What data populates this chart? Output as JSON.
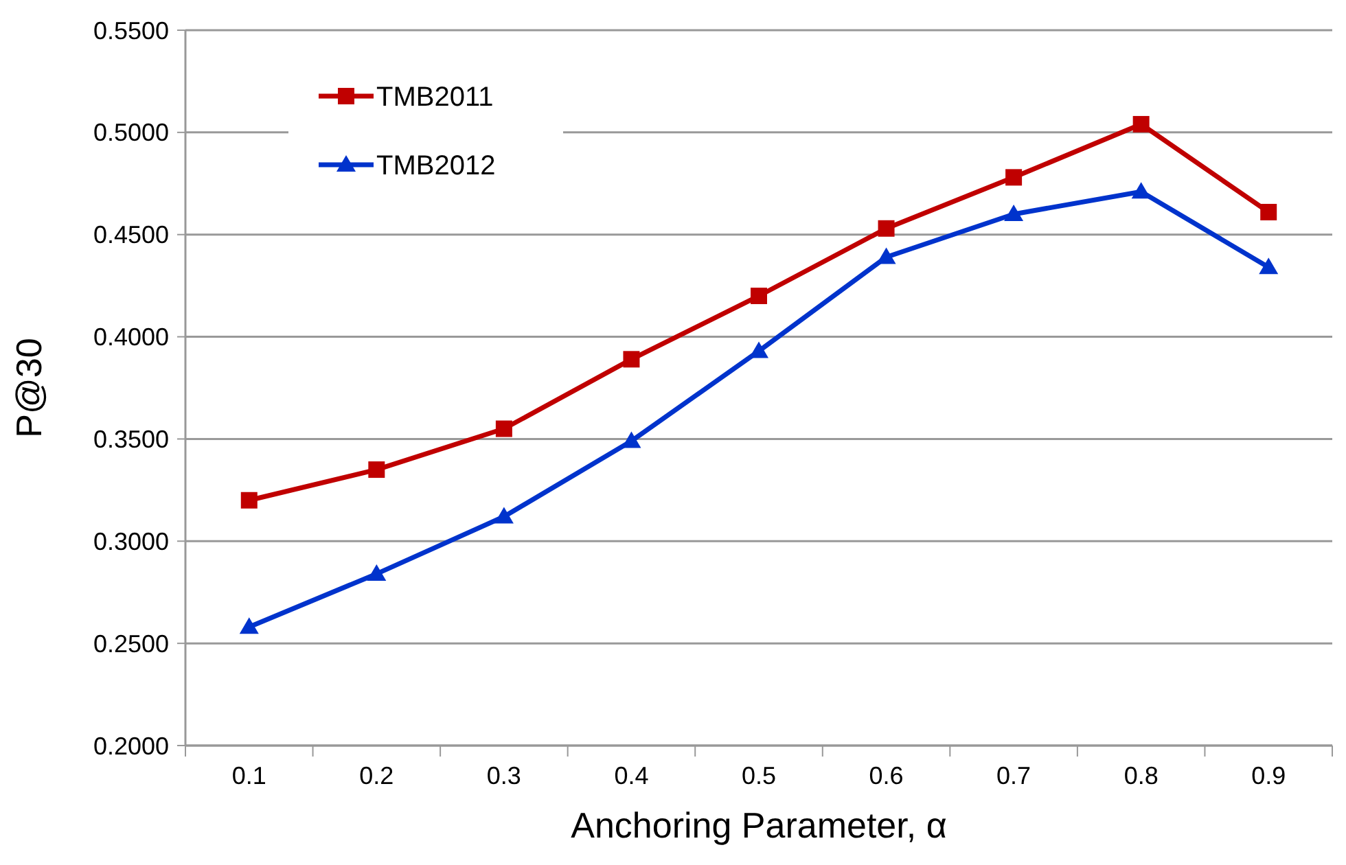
{
  "chart_data": {
    "type": "line",
    "xlabel": "Anchoring Parameter, α",
    "ylabel": "P@30",
    "categories": [
      "0.1",
      "0.2",
      "0.3",
      "0.4",
      "0.5",
      "0.6",
      "0.7",
      "0.8",
      "0.9"
    ],
    "series": [
      {
        "name": "TMB2011",
        "color": "#c00000",
        "marker": "square",
        "values": [
          0.32,
          0.335,
          0.355,
          0.389,
          0.42,
          0.453,
          0.478,
          0.504,
          0.461
        ]
      },
      {
        "name": "TMB2012",
        "color": "#0033cc",
        "marker": "triangle",
        "values": [
          0.258,
          0.284,
          0.312,
          0.349,
          0.393,
          0.439,
          0.46,
          0.471,
          0.434
        ]
      }
    ],
    "ylim": [
      0.2,
      0.55
    ],
    "yticks": [
      {
        "value": 0.2,
        "label": "0.2000"
      },
      {
        "value": 0.25,
        "label": "0.2500"
      },
      {
        "value": 0.3,
        "label": "0.3000"
      },
      {
        "value": 0.35,
        "label": "0.3500"
      },
      {
        "value": 0.4,
        "label": "0.4000"
      },
      {
        "value": 0.45,
        "label": "0.4500"
      },
      {
        "value": 0.5,
        "label": "0.5000"
      },
      {
        "value": 0.55,
        "label": "0.5500"
      }
    ],
    "grid": "y",
    "legend": "top left",
    "line_style": "solid"
  }
}
